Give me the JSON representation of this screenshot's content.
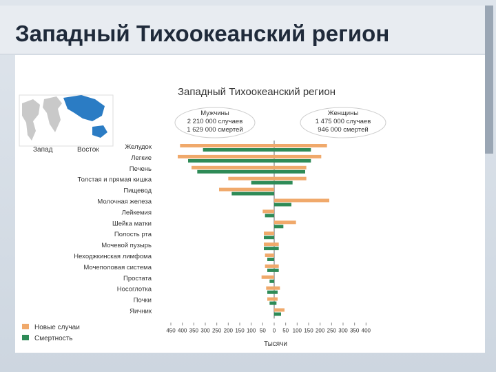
{
  "slide": {
    "title": "Западный Тихоокеанский регион"
  },
  "colors": {
    "cases": "#f0a96b",
    "deaths": "#2e8b57",
    "map_ocean": "#ffffff",
    "map_land": "#c9c9c9",
    "map_region": "#2b7cc4"
  },
  "map": {
    "label_west": "Запад",
    "label_east": "Восток"
  },
  "chart_data": {
    "type": "bar",
    "title": "Западный Тихоокеанский регион",
    "xlabel": "Тысячи",
    "male_box": [
      "Мужчины",
      "2 210 000 случаев",
      "1 629 000 смертей"
    ],
    "female_box": [
      "Женщины",
      "1 475 000 случаев",
      "946 000 смертей"
    ],
    "categories": [
      "Желудок",
      "Легкие",
      "Печень",
      "Толстая и прямая кишка",
      "Пищевод",
      "Молочная железа",
      "Лейкемия",
      "Шейка матки",
      "Полость рта",
      "Мочевой пузырь",
      "Неходжкинская лимфома",
      "Мочеполовая система",
      "Простата",
      "Носоглотка",
      "Почки",
      "Яичник"
    ],
    "ticks": [
      "450",
      "400",
      "350",
      "300",
      "250",
      "200",
      "150",
      "100",
      "50",
      "0",
      "50",
      "100",
      "150",
      "200",
      "250",
      "300",
      "350",
      "400"
    ],
    "xlim": [
      -450,
      450
    ],
    "series": [
      {
        "name": "Новые случаи",
        "key": "cases",
        "male": [
          410,
          420,
          360,
          200,
          240,
          0,
          50,
          0,
          45,
          45,
          40,
          40,
          55,
          35,
          30,
          0
        ],
        "female": [
          230,
          205,
          140,
          140,
          0,
          240,
          0,
          95,
          0,
          20,
          0,
          20,
          0,
          25,
          15,
          45
        ]
      },
      {
        "name": "Смертность",
        "key": "deaths",
        "male": [
          310,
          375,
          335,
          100,
          185,
          0,
          40,
          0,
          45,
          45,
          30,
          30,
          20,
          30,
          20,
          0
        ],
        "female": [
          160,
          160,
          135,
          80,
          0,
          75,
          0,
          40,
          0,
          20,
          0,
          20,
          0,
          15,
          10,
          30
        ]
      }
    ],
    "legend": {
      "placement": "bottom-left",
      "cases_label": "Новые случаи",
      "deaths_label": "Смертность"
    }
  }
}
